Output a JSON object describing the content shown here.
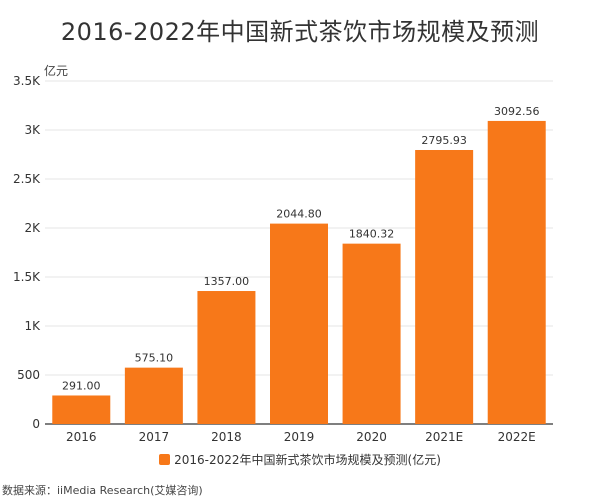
{
  "title": "2016-2022年中国新式茶饮市场规模及预测",
  "unit_label": "亿元",
  "source": "数据来源：iiMedia Research(艾媒咨询)",
  "colors": {
    "bar": "#f77819",
    "grid": "#e6e6e6",
    "axis": "#333333"
  },
  "chart_data": {
    "type": "bar",
    "title": "2016-2022年中国新式茶饮市场规模及预测",
    "ylabel": "亿元",
    "xlabel": "",
    "categories": [
      "2016",
      "2017",
      "2018",
      "2019",
      "2020",
      "2021E",
      "2022E"
    ],
    "series": [
      {
        "name": "2016-2022年中国新式茶饮市场规模及预测(亿元)",
        "values": [
          291.0,
          575.1,
          1357.0,
          2044.8,
          1840.32,
          2795.93,
          3092.56
        ],
        "labels": [
          "291.00",
          "575.10",
          "1357.00",
          "2044.80",
          "1840.32",
          "2795.93",
          "3092.56"
        ]
      }
    ],
    "ylim": [
      0,
      3500
    ],
    "yticks": [
      0,
      500,
      1000,
      1500,
      2000,
      2500,
      3000,
      3500
    ],
    "ytick_labels": [
      "0",
      "500",
      "1K",
      "1.5K",
      "2K",
      "2.5K",
      "3K",
      "3.5K"
    ],
    "grid": true,
    "legend_position": "bottom"
  }
}
